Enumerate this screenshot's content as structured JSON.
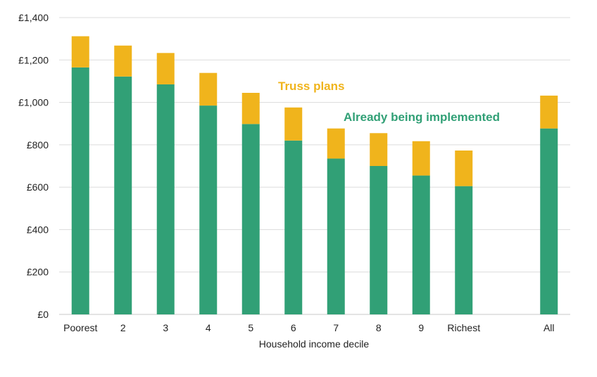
{
  "chart_data": {
    "type": "bar",
    "stacked": true,
    "categories": [
      "Poorest",
      "2",
      "3",
      "4",
      "5",
      "6",
      "7",
      "8",
      "9",
      "Richest",
      "",
      "All"
    ],
    "series": [
      {
        "name": "Already being implemented",
        "color": "#31a076",
        "values": [
          1165,
          1122,
          1085,
          985,
          898,
          820,
          735,
          700,
          655,
          605,
          null,
          877
        ]
      },
      {
        "name": "Truss plans",
        "color": "#f0b41c",
        "values": [
          147,
          146,
          148,
          154,
          147,
          156,
          142,
          155,
          162,
          168,
          null,
          155
        ]
      }
    ],
    "title": "",
    "xlabel": "Household income decile",
    "ylabel": "",
    "ylim": [
      0,
      1400
    ],
    "yticks": [
      "£0",
      "£200",
      "£400",
      "£600",
      "£800",
      "£1,000",
      "£1,200",
      "£1,400"
    ],
    "ytick_values": [
      0,
      200,
      400,
      600,
      800,
      1000,
      1200,
      1400
    ],
    "grid": true,
    "legend_placement": "inline labels near top-centre"
  }
}
